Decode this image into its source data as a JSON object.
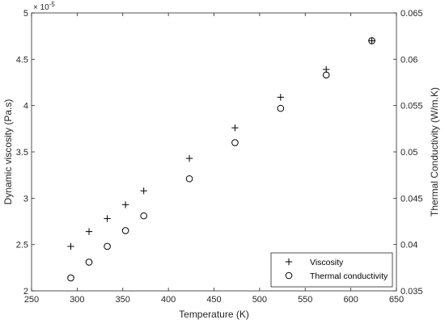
{
  "chart_data": {
    "type": "scatter",
    "title": "",
    "xlabel": "Temperature (K)",
    "ylabel": "Dynamic viscosity (Pa.s)",
    "y2label": "Thermal Conductivity (W/m.K)",
    "xlim": [
      250,
      650
    ],
    "ylim": [
      2,
      5
    ],
    "y2lim": [
      0.035,
      0.065
    ],
    "x_ticks": [
      "250",
      "300",
      "350",
      "400",
      "450",
      "500",
      "550",
      "600",
      "650"
    ],
    "y_ticks": [
      "2",
      "2.5",
      "3",
      "3.5",
      "4",
      "4.5",
      "5"
    ],
    "y_exponent": "× 10",
    "y_exponent_power": "-5",
    "y2_ticks": [
      "0.035",
      "0.04",
      "0.045",
      "0.05",
      "0.055",
      "0.06",
      "0.065"
    ],
    "grid": false,
    "legend_position": "bottom-right",
    "series": [
      {
        "name": "Viscosity",
        "marker": "plus",
        "axis": "left",
        "color": "#000000",
        "x": [
          293,
          313,
          333,
          353,
          373,
          423,
          473,
          523,
          573,
          623
        ],
        "y": [
          2.48,
          2.64,
          2.78,
          2.93,
          3.08,
          3.43,
          3.76,
          4.09,
          4.39,
          4.7
        ]
      },
      {
        "name": "Thermal conductivity",
        "marker": "circle",
        "axis": "right",
        "color": "#000000",
        "x": [
          293,
          313,
          333,
          353,
          373,
          423,
          473,
          523,
          573,
          623
        ],
        "y": [
          0.0364,
          0.0381,
          0.0398,
          0.0415,
          0.0431,
          0.0471,
          0.051,
          0.0547,
          0.0583,
          0.062
        ]
      }
    ]
  }
}
